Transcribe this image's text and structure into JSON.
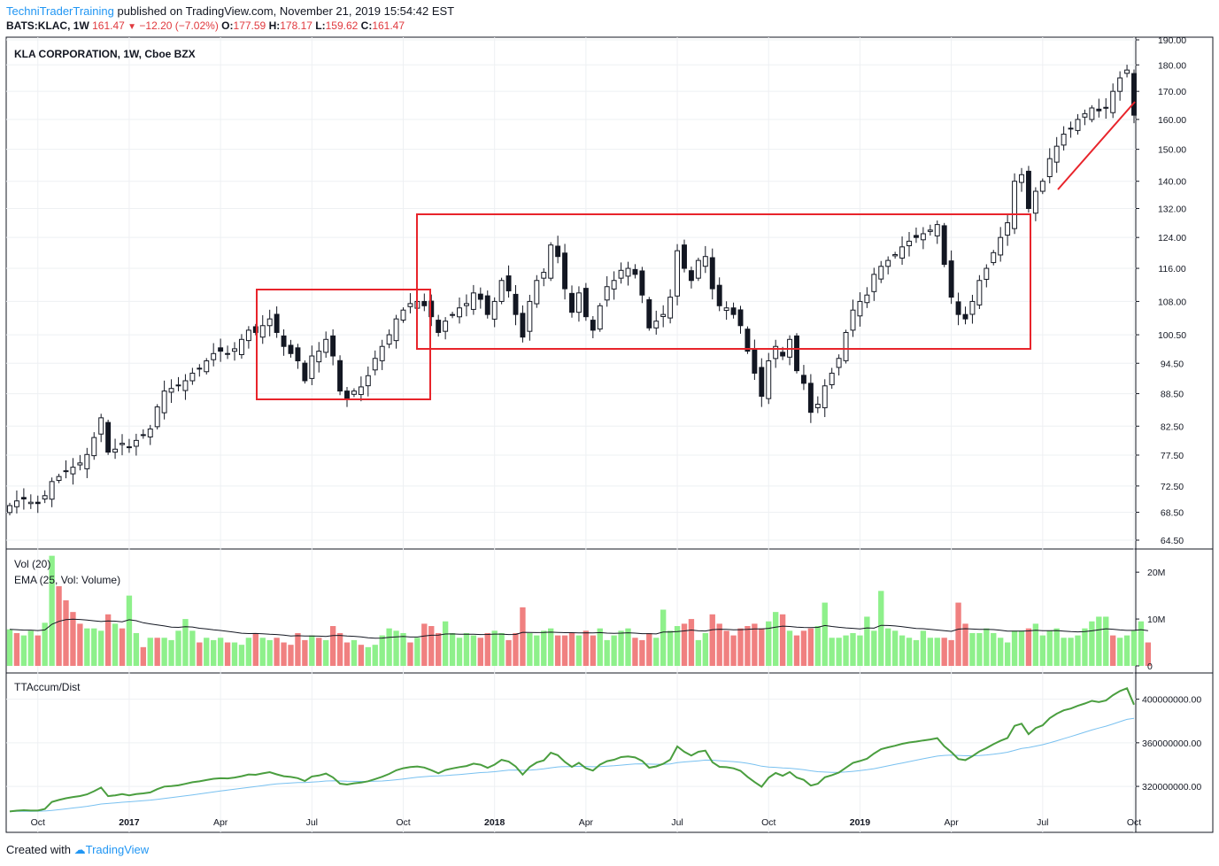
{
  "header": {
    "brand": "TechniTraderTraining",
    "published_text": "published on TradingView.com, November 21, 2019 15:54:42 EST",
    "symbol": "BATS:KLAC, 1W",
    "last": "161.47",
    "change": "−12.20 (−7.02%)",
    "o_label": "O:",
    "o_value": "177.59",
    "h_label": "H:",
    "h_value": "178.17",
    "l_label": "L:",
    "l_value": "159.62",
    "c_label": "C:",
    "c_value": "161.47"
  },
  "footer": {
    "created_with": "Created with",
    "brand": "TradingView"
  },
  "colors": {
    "up_volume": "#8ef08b",
    "down_volume": "#f08080",
    "annotation": "#e8242b",
    "accum": "#4a9e3f",
    "accum_ma": "#79c1f0"
  },
  "chart_data": [
    {
      "type": "candlestick",
      "title": "KLA CORPORATION, 1W, Cboe BZX",
      "y_ticks": [
        190,
        180,
        170,
        160,
        150,
        140,
        132,
        124,
        116,
        108,
        100.5,
        94.5,
        88.5,
        82.5,
        77.5,
        72.5,
        68.5,
        64.5
      ],
      "y_tick_labels": [
        "190.00",
        "180.00",
        "170.00",
        "160.00",
        "150.00",
        "140.00",
        "132.00",
        "124.00",
        "116.00",
        "108.00",
        "100.50",
        "94.50",
        "88.50",
        "82.50",
        "77.50",
        "72.50",
        "68.50",
        "64.50"
      ],
      "scale": "log",
      "x_labels": [
        "Oct",
        "2017",
        "Apr",
        "Jul",
        "Oct",
        "2018",
        "Apr",
        "Jul",
        "Oct",
        "2019",
        "Apr",
        "Jul",
        "Oct"
      ],
      "close": [
        69.5,
        70.2,
        70.5,
        70.0,
        69.8,
        71.0,
        73.2,
        74.0,
        74.8,
        75.5,
        76.2,
        77.6,
        80.5,
        84.0,
        78.0,
        78.5,
        79.5,
        78.8,
        80.0,
        81.0,
        82.0,
        86.0,
        89.0,
        89.5,
        90.0,
        91.0,
        92.5,
        93.5,
        95.0,
        96.5,
        97.0,
        96.5,
        97.5,
        99.5,
        101.5,
        101.0,
        102.5,
        104.0,
        101.0,
        98.0,
        96.5,
        95.0,
        91.0,
        96.0,
        97.0,
        99.5,
        96.0,
        89.0,
        87.5,
        89.0,
        89.8,
        92.0,
        95.5,
        98.0,
        100.5,
        104.0,
        106.0,
        107.5,
        108.0,
        107.0,
        104.5,
        101.0,
        103.5,
        105.0,
        106.5,
        107.5,
        110.0,
        108.5,
        105.0,
        108.0,
        113.0,
        110.5,
        105.0,
        100.0,
        108.0,
        113.0,
        115.0,
        122.0,
        119.0,
        111.0,
        105.5,
        110.0,
        104.5,
        101.5,
        107.0,
        111.5,
        113.0,
        115.5,
        116.0,
        114.5,
        109.5,
        102.0,
        103.5,
        105.0,
        109.0,
        120.5,
        116.0,
        113.0,
        118.0,
        119.0,
        111.0,
        107.0,
        106.5,
        105.0,
        102.5,
        97.0,
        92.5,
        88.0,
        95.0,
        98.0,
        96.0,
        99.5,
        93.0,
        90.5,
        85.0,
        86.5,
        90.0,
        92.5,
        95.5,
        101.0,
        106.0,
        108.0,
        109.5,
        114.5,
        116.5,
        118.0,
        119.5,
        121.5,
        123.0,
        124.0,
        125.0,
        126.0,
        127.5,
        117.0,
        109.0,
        105.0,
        104.0,
        108.0,
        113.0,
        116.0,
        120.0,
        124.0,
        128.0,
        140.0,
        142.0,
        132.0,
        137.0,
        140.0,
        147.0,
        151.0,
        155.0,
        157.0,
        160.0,
        162.0,
        164.0,
        163.0,
        164.0,
        170.0,
        175.0,
        178.0,
        161.47
      ]
    },
    {
      "type": "bar",
      "title": "Vol (20)",
      "subtitle": "EMA (25, Vol: Volume)",
      "y_tick_labels": [
        "20M",
        "10M",
        "0"
      ],
      "ylim": [
        0,
        24
      ],
      "unit": "M",
      "values": [
        7.8,
        7.0,
        6.5,
        7.5,
        6.5,
        9.2,
        23.5,
        17.0,
        14.0,
        11.5,
        9.0,
        8.0,
        8.0,
        7.5,
        11.0,
        9.0,
        8.0,
        15.0,
        7.0,
        4.0,
        6.0,
        6.0,
        6.0,
        5.5,
        7.5,
        10.0,
        7.5,
        5.0,
        6.0,
        5.5,
        6.0,
        5.0,
        5.0,
        4.5,
        6.0,
        7.0,
        6.0,
        5.5,
        6.0,
        5.0,
        4.5,
        7.0,
        5.5,
        6.5,
        6.0,
        5.5,
        8.5,
        7.0,
        5.0,
        5.5,
        4.5,
        4.0,
        4.5,
        6.5,
        8.0,
        7.5,
        7.0,
        5.0,
        6.0,
        9.0,
        8.5,
        7.0,
        9.5,
        7.0,
        6.0,
        7.0,
        6.5,
        6.0,
        7.0,
        7.5,
        7.0,
        5.5,
        7.0,
        12.5,
        7.0,
        6.5,
        7.5,
        8.0,
        6.5,
        6.5,
        7.0,
        6.5,
        7.5,
        6.5,
        8.0,
        5.5,
        6.5,
        7.5,
        8.0,
        6.0,
        5.5,
        7.0,
        6.0,
        12.0,
        7.5,
        8.5,
        9.0,
        10.0,
        5.5,
        7.0,
        11.0,
        9.0,
        7.5,
        6.5,
        8.0,
        8.5,
        9.0,
        8.0,
        9.5,
        11.5,
        11.0,
        7.5,
        6.5,
        7.5,
        8.0,
        8.5,
        13.5,
        6.0,
        6.0,
        6.5,
        7.0,
        6.5,
        10.5,
        7.5,
        16.0,
        8.0,
        7.5,
        6.5,
        6.0,
        5.5,
        7.5,
        6.0,
        6.0,
        6.0,
        5.5,
        13.5,
        9.0,
        7.0,
        7.0,
        8.0,
        7.0,
        6.0,
        5.0,
        7.5,
        7.5,
        8.0,
        9.0,
        6.5,
        7.5,
        8.0,
        6.0,
        6.0,
        6.5,
        8.0,
        9.5,
        10.5,
        10.5,
        6.5,
        6.0,
        6.5,
        7.5,
        9.5,
        5.0
      ],
      "up": [
        true,
        false,
        true,
        true,
        false,
        true,
        true,
        false,
        false,
        false,
        false,
        true,
        true,
        true,
        false,
        true,
        false,
        true,
        true,
        false,
        true,
        false,
        true,
        true,
        true,
        true,
        true,
        false,
        true,
        true,
        true,
        false,
        true,
        true,
        true,
        false,
        true,
        true,
        false,
        false,
        false,
        false,
        false,
        true,
        false,
        true,
        false,
        false,
        false,
        true,
        false,
        true,
        true,
        true,
        true,
        true,
        true,
        false,
        true,
        false,
        false,
        false,
        true,
        true,
        true,
        true,
        true,
        false,
        false,
        true,
        true,
        false,
        false,
        false,
        true,
        true,
        true,
        true,
        false,
        false,
        false,
        true,
        false,
        false,
        true,
        true,
        true,
        true,
        true,
        false,
        false,
        false,
        true,
        true,
        true,
        true,
        false,
        false,
        true,
        true,
        false,
        false,
        false,
        false,
        false,
        false,
        false,
        false,
        true,
        true,
        false,
        true,
        false,
        false,
        false,
        true,
        true,
        true,
        true,
        true,
        true,
        true,
        true,
        true,
        true,
        true,
        true,
        true,
        true,
        true,
        true,
        true,
        true,
        false,
        false,
        false,
        false,
        true,
        true,
        true,
        true,
        true,
        true,
        true,
        true,
        false,
        true,
        true,
        true,
        true,
        true,
        true,
        true,
        true,
        true,
        true,
        true,
        false,
        true,
        true,
        true,
        true,
        false
      ]
    },
    {
      "type": "line",
      "title": "TTAccum/Dist",
      "y_tick_labels": [
        "400000000.00",
        "360000000.00",
        "320000000.00"
      ],
      "y_ticks": [
        400000000,
        360000000,
        320000000
      ],
      "ylim": [
        290000000,
        420000000
      ]
    }
  ]
}
